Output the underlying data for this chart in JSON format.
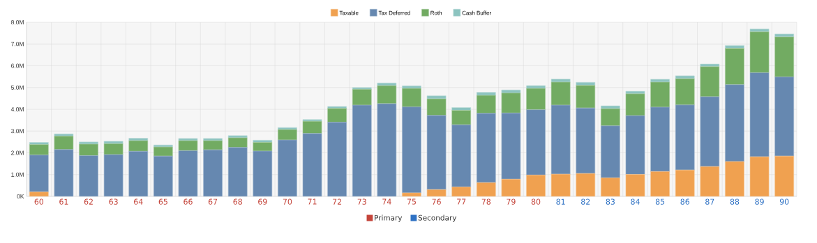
{
  "chart_data": {
    "type": "bar",
    "stacked": true,
    "categories": [
      "60",
      "61",
      "62",
      "63",
      "64",
      "65",
      "66",
      "67",
      "68",
      "69",
      "70",
      "71",
      "72",
      "73",
      "74",
      "75",
      "76",
      "77",
      "78",
      "79",
      "80",
      "81",
      "82",
      "83",
      "84",
      "85",
      "86",
      "87",
      "88",
      "89",
      "90"
    ],
    "series": [
      {
        "name": "Taxable",
        "color": "#f0a150",
        "values": [
          0.2,
          0,
          0,
          0,
          0,
          0,
          0,
          0,
          0,
          0,
          0,
          0,
          0,
          0,
          0,
          0.16,
          0.31,
          0.43,
          0.63,
          0.79,
          0.98,
          1.02,
          1.05,
          0.85,
          1.01,
          1.14,
          1.21,
          1.37,
          1.6,
          1.82,
          1.85
        ]
      },
      {
        "name": "Tax Deferred",
        "color": "#6688b0",
        "values": [
          1.7,
          2.15,
          1.87,
          1.92,
          2.07,
          1.85,
          2.1,
          2.14,
          2.25,
          2.08,
          2.59,
          2.89,
          3.41,
          4.19,
          4.26,
          3.95,
          3.41,
          2.86,
          3.19,
          3.04,
          3.0,
          3.17,
          3.01,
          2.39,
          2.7,
          2.96,
          2.99,
          3.21,
          3.53,
          3.86,
          3.64
        ]
      },
      {
        "name": "Roth",
        "color": "#72ab62",
        "values": [
          0.48,
          0.62,
          0.53,
          0.5,
          0.49,
          0.42,
          0.46,
          0.42,
          0.44,
          0.4,
          0.48,
          0.56,
          0.63,
          0.73,
          0.83,
          0.85,
          0.76,
          0.66,
          0.82,
          0.92,
          0.98,
          1.06,
          1.04,
          0.79,
          1.0,
          1.15,
          1.21,
          1.38,
          1.67,
          1.88,
          1.84
        ]
      },
      {
        "name": "Cash Buffer",
        "color": "#8dc4c0",
        "values": [
          0.1,
          0.1,
          0.1,
          0.11,
          0.11,
          0.09,
          0.1,
          0.1,
          0.1,
          0.1,
          0.09,
          0.08,
          0.09,
          0.08,
          0.12,
          0.12,
          0.14,
          0.13,
          0.14,
          0.14,
          0.13,
          0.14,
          0.14,
          0.13,
          0.12,
          0.13,
          0.13,
          0.12,
          0.13,
          0.13,
          0.13
        ]
      }
    ],
    "ylim": [
      0,
      8
    ],
    "yticks": [
      {
        "value": 0,
        "label": "0K"
      },
      {
        "value": 1,
        "label": "1.0M"
      },
      {
        "value": 2,
        "label": "2.0M"
      },
      {
        "value": 3,
        "label": "3.0M"
      },
      {
        "value": 4,
        "label": "4.0M"
      },
      {
        "value": 5,
        "label": "5.0M"
      },
      {
        "value": 6,
        "label": "6.0M"
      },
      {
        "value": 7,
        "label": "7.0M"
      },
      {
        "value": 8,
        "label": "8.0M"
      }
    ],
    "grid": true,
    "legend": "top",
    "annotations": [
      "Primary",
      "Secondary"
    ]
  }
}
